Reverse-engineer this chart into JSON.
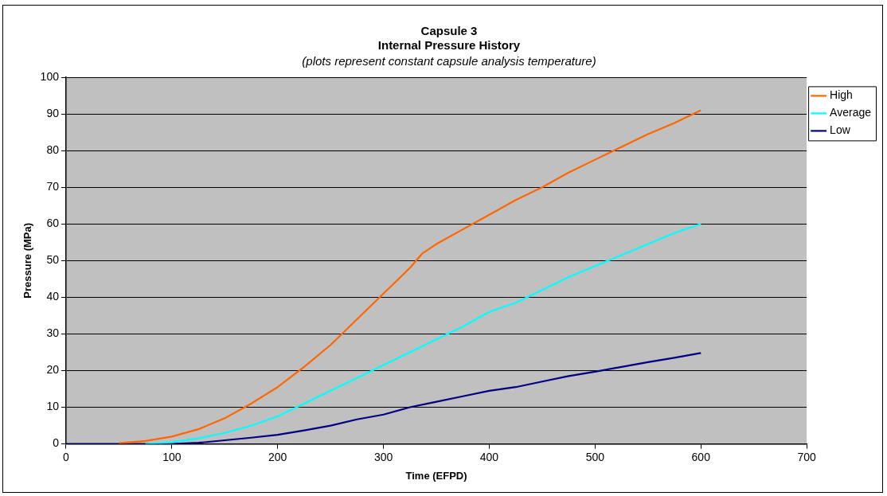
{
  "chart_data": {
    "type": "line",
    "title": "Capsule 3\nInternal Pressure History",
    "subtitle": "(plots represent constant capsule analysis temperature)",
    "xlabel": "Time (EFPD)",
    "ylabel": "Pressure (MPa)",
    "xlim": [
      0,
      700
    ],
    "xticks": [
      0,
      100,
      200,
      300,
      400,
      500,
      600,
      700
    ],
    "ylim": [
      0,
      100
    ],
    "yticks": [
      0,
      10,
      20,
      30,
      40,
      50,
      60,
      70,
      80,
      90,
      100
    ],
    "grid": "y",
    "legend": "top right",
    "marker": "none",
    "line_style": "solid",
    "series": [
      {
        "name": "High",
        "color": "#ff6600",
        "x": [
          50,
          75,
          100,
          125,
          150,
          175,
          200,
          225,
          250,
          275,
          300,
          325,
          337,
          350,
          375,
          400,
          425,
          450,
          475,
          500,
          525,
          550,
          575,
          600
        ],
        "values": [
          0.2,
          0.8,
          2,
          4,
          7,
          11,
          15.5,
          21,
          27,
          34,
          41,
          48,
          52,
          54.5,
          58.5,
          62.5,
          66.5,
          70,
          74,
          77.5,
          81,
          84.5,
          87.5,
          91
        ]
      },
      {
        "name": "Average",
        "color": "#00ffff",
        "x": [
          75,
          100,
          125,
          150,
          175,
          200,
          225,
          250,
          275,
          300,
          325,
          350,
          375,
          400,
          425,
          450,
          475,
          500,
          525,
          550,
          575,
          600
        ],
        "values": [
          0,
          0.5,
          1.5,
          3,
          5,
          7.5,
          11,
          14.5,
          18,
          21.5,
          25,
          28.5,
          32,
          36,
          38.5,
          42,
          45.5,
          48.5,
          51.5,
          54.5,
          57.5,
          60
        ]
      },
      {
        "name": "Low",
        "color": "#000080",
        "x": [
          0,
          100,
          125,
          150,
          175,
          200,
          225,
          250,
          275,
          300,
          325,
          350,
          375,
          400,
          425,
          450,
          475,
          500,
          525,
          550,
          575,
          600
        ],
        "values": [
          0,
          0,
          0.3,
          1,
          1.7,
          2.5,
          3.7,
          5,
          6.7,
          8,
          10,
          11.5,
          13,
          14.5,
          15.5,
          17,
          18.5,
          19.7,
          21,
          22.3,
          23.5,
          24.8
        ]
      }
    ]
  }
}
